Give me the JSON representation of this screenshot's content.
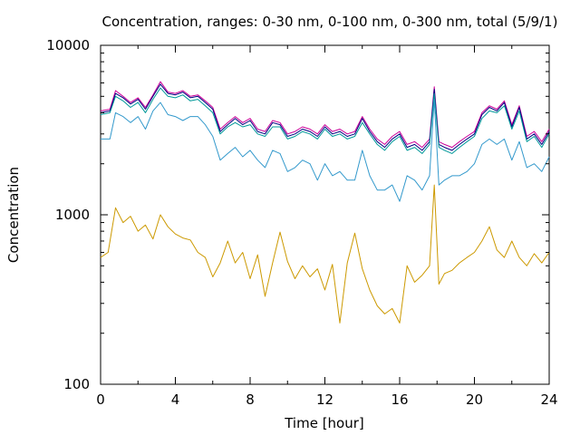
{
  "chart_data": {
    "type": "line",
    "title": "Concentration, ranges: 0-30 nm, 0-100 nm, 0-300 nm, total (5/9/1)",
    "xlabel": "Time [hour]",
    "ylabel": "Concentration",
    "xlim": [
      0,
      24
    ],
    "ylim": [
      100,
      10000
    ],
    "yscale": "log",
    "grid": false,
    "legend": "none",
    "xticks": [
      "0",
      "4",
      "8",
      "12",
      "16",
      "20",
      "24"
    ],
    "yticks": [
      "100",
      "1000",
      "10000"
    ],
    "series": [
      {
        "color": "#cc0099",
        "x": [
          0,
          0.5,
          0.8,
          1.2,
          1.6,
          2,
          2.4,
          2.8,
          3.2,
          3.6,
          4,
          4.4,
          4.8,
          5.2,
          5.6,
          6,
          6.4,
          6.8,
          7.2,
          7.6,
          8,
          8.4,
          8.8,
          9.2,
          9.6,
          10,
          10.4,
          10.8,
          11.2,
          11.6,
          12,
          12.4,
          12.8,
          13.2,
          13.6,
          14,
          14.4,
          14.8,
          15.2,
          15.6,
          16,
          16.4,
          16.8,
          17.2,
          17.6,
          17.85,
          18.1,
          18.4,
          18.8,
          19.2,
          19.6,
          20,
          20.4,
          20.8,
          21.2,
          21.6,
          22,
          22.4,
          22.8,
          23.2,
          23.6,
          24
        ],
        "values": [
          4100,
          4200,
          5400,
          5000,
          4600,
          4900,
          4300,
          5100,
          6100,
          5300,
          5200,
          5400,
          5000,
          5100,
          4700,
          4300,
          3200,
          3500,
          3800,
          3500,
          3700,
          3200,
          3100,
          3600,
          3500,
          3000,
          3100,
          3300,
          3200,
          3000,
          3400,
          3100,
          3200,
          3000,
          3100,
          3800,
          3200,
          2800,
          2600,
          2900,
          3100,
          2600,
          2700,
          2500,
          2800,
          5700,
          2700,
          2600,
          2500,
          2700,
          2900,
          3100,
          4000,
          4400,
          4200,
          4700,
          3400,
          4400,
          2900,
          3100,
          2700,
          3200
        ]
      },
      {
        "color": "#000080",
        "x": [
          0,
          0.5,
          0.8,
          1.2,
          1.6,
          2,
          2.4,
          2.8,
          3.2,
          3.6,
          4,
          4.4,
          4.8,
          5.2,
          5.6,
          6,
          6.4,
          6.8,
          7.2,
          7.6,
          8,
          8.4,
          8.8,
          9.2,
          9.6,
          10,
          10.4,
          10.8,
          11.2,
          11.6,
          12,
          12.4,
          12.8,
          13.2,
          13.6,
          14,
          14.4,
          14.8,
          15.2,
          15.6,
          16,
          16.4,
          16.8,
          17.2,
          17.6,
          17.85,
          18.1,
          18.4,
          18.8,
          19.2,
          19.6,
          20,
          20.4,
          20.8,
          21.2,
          21.6,
          22,
          22.4,
          22.8,
          23.2,
          23.6,
          24
        ],
        "values": [
          4000,
          4100,
          5200,
          4900,
          4500,
          4800,
          4200,
          5000,
          5900,
          5200,
          5100,
          5300,
          4900,
          5000,
          4600,
          4200,
          3100,
          3400,
          3700,
          3400,
          3600,
          3100,
          3000,
          3500,
          3400,
          2900,
          3000,
          3200,
          3100,
          2900,
          3300,
          3000,
          3100,
          2900,
          3000,
          3700,
          3100,
          2700,
          2500,
          2800,
          3000,
          2500,
          2600,
          2400,
          2700,
          5500,
          2600,
          2500,
          2400,
          2600,
          2800,
          3000,
          3900,
          4300,
          4100,
          4600,
          3300,
          4300,
          2800,
          3000,
          2600,
          3100
        ]
      },
      {
        "color": "#009999",
        "x": [
          0,
          0.5,
          0.8,
          1.2,
          1.6,
          2,
          2.4,
          2.8,
          3.2,
          3.6,
          4,
          4.4,
          4.8,
          5.2,
          5.6,
          6,
          6.4,
          6.8,
          7.2,
          7.6,
          8,
          8.4,
          8.8,
          9.2,
          9.6,
          10,
          10.4,
          10.8,
          11.2,
          11.6,
          12,
          12.4,
          12.8,
          13.2,
          13.6,
          14,
          14.4,
          14.8,
          15.2,
          15.6,
          16,
          16.4,
          16.8,
          17.2,
          17.6,
          17.85,
          18.1,
          18.4,
          18.8,
          19.2,
          19.6,
          20,
          20.4,
          20.8,
          21.2,
          21.6,
          22,
          22.4,
          22.8,
          23.2,
          23.6,
          24
        ],
        "values": [
          3900,
          4000,
          5000,
          4700,
          4300,
          4600,
          4000,
          4800,
          5600,
          5000,
          4900,
          5100,
          4700,
          4800,
          4400,
          4000,
          3000,
          3300,
          3500,
          3300,
          3400,
          3000,
          2900,
          3300,
          3300,
          2800,
          2900,
          3100,
          3000,
          2800,
          3200,
          2900,
          3000,
          2800,
          2900,
          3500,
          3000,
          2600,
          2400,
          2700,
          2900,
          2400,
          2500,
          2300,
          2600,
          5200,
          2500,
          2400,
          2300,
          2500,
          2700,
          2900,
          3700,
          4100,
          4000,
          4400,
          3200,
          4100,
          2700,
          2900,
          2500,
          3000
        ]
      },
      {
        "color": "#3399cc",
        "x": [
          0,
          0.5,
          0.8,
          1.2,
          1.6,
          2,
          2.4,
          2.8,
          3.2,
          3.6,
          4,
          4.4,
          4.8,
          5.2,
          5.6,
          6,
          6.4,
          6.8,
          7.2,
          7.6,
          8,
          8.4,
          8.8,
          9.2,
          9.6,
          10,
          10.4,
          10.8,
          11.2,
          11.6,
          12,
          12.4,
          12.8,
          13.2,
          13.6,
          14,
          14.4,
          14.8,
          15.2,
          15.6,
          16,
          16.4,
          16.8,
          17.2,
          17.6,
          17.85,
          18.1,
          18.4,
          18.8,
          19.2,
          19.6,
          20,
          20.4,
          20.8,
          21.2,
          21.6,
          22,
          22.4,
          22.8,
          23.2,
          23.6,
          24
        ],
        "values": [
          2800,
          2800,
          4000,
          3800,
          3500,
          3800,
          3200,
          4100,
          4600,
          3900,
          3800,
          3600,
          3800,
          3800,
          3400,
          2900,
          2100,
          2300,
          2500,
          2200,
          2400,
          2100,
          1900,
          2400,
          2300,
          1800,
          1900,
          2100,
          2000,
          1600,
          2000,
          1700,
          1800,
          1600,
          1600,
          2400,
          1700,
          1400,
          1400,
          1500,
          1200,
          1700,
          1600,
          1400,
          1700,
          4800,
          1500,
          1600,
          1700,
          1700,
          1800,
          2000,
          2600,
          2800,
          2600,
          2800,
          2100,
          2700,
          1900,
          2000,
          1800,
          2200
        ]
      },
      {
        "color": "#cc9900",
        "x": [
          0,
          0.4,
          0.8,
          1.2,
          1.6,
          2,
          2.4,
          2.8,
          3.2,
          3.6,
          4,
          4.4,
          4.8,
          5.2,
          5.6,
          6,
          6.4,
          6.8,
          7.2,
          7.6,
          8,
          8.4,
          8.8,
          9.2,
          9.6,
          10,
          10.4,
          10.8,
          11.2,
          11.6,
          12,
          12.4,
          12.8,
          13.2,
          13.6,
          14,
          14.4,
          14.8,
          15.2,
          15.6,
          16,
          16.4,
          16.8,
          17.2,
          17.6,
          17.85,
          18.1,
          18.4,
          18.8,
          19.2,
          19.6,
          20,
          20.4,
          20.8,
          21.2,
          21.6,
          22,
          22.4,
          22.8,
          23.2,
          23.6,
          24
        ],
        "values": [
          560,
          600,
          1100,
          900,
          980,
          800,
          870,
          720,
          1000,
          850,
          770,
          730,
          710,
          600,
          560,
          430,
          520,
          700,
          520,
          600,
          420,
          580,
          330,
          520,
          790,
          530,
          420,
          500,
          430,
          480,
          360,
          510,
          230,
          520,
          780,
          480,
          360,
          290,
          260,
          280,
          230,
          500,
          400,
          440,
          500,
          1500,
          390,
          450,
          470,
          520,
          560,
          600,
          700,
          850,
          620,
          560,
          700,
          560,
          500,
          590,
          520,
          600
        ]
      }
    ]
  }
}
